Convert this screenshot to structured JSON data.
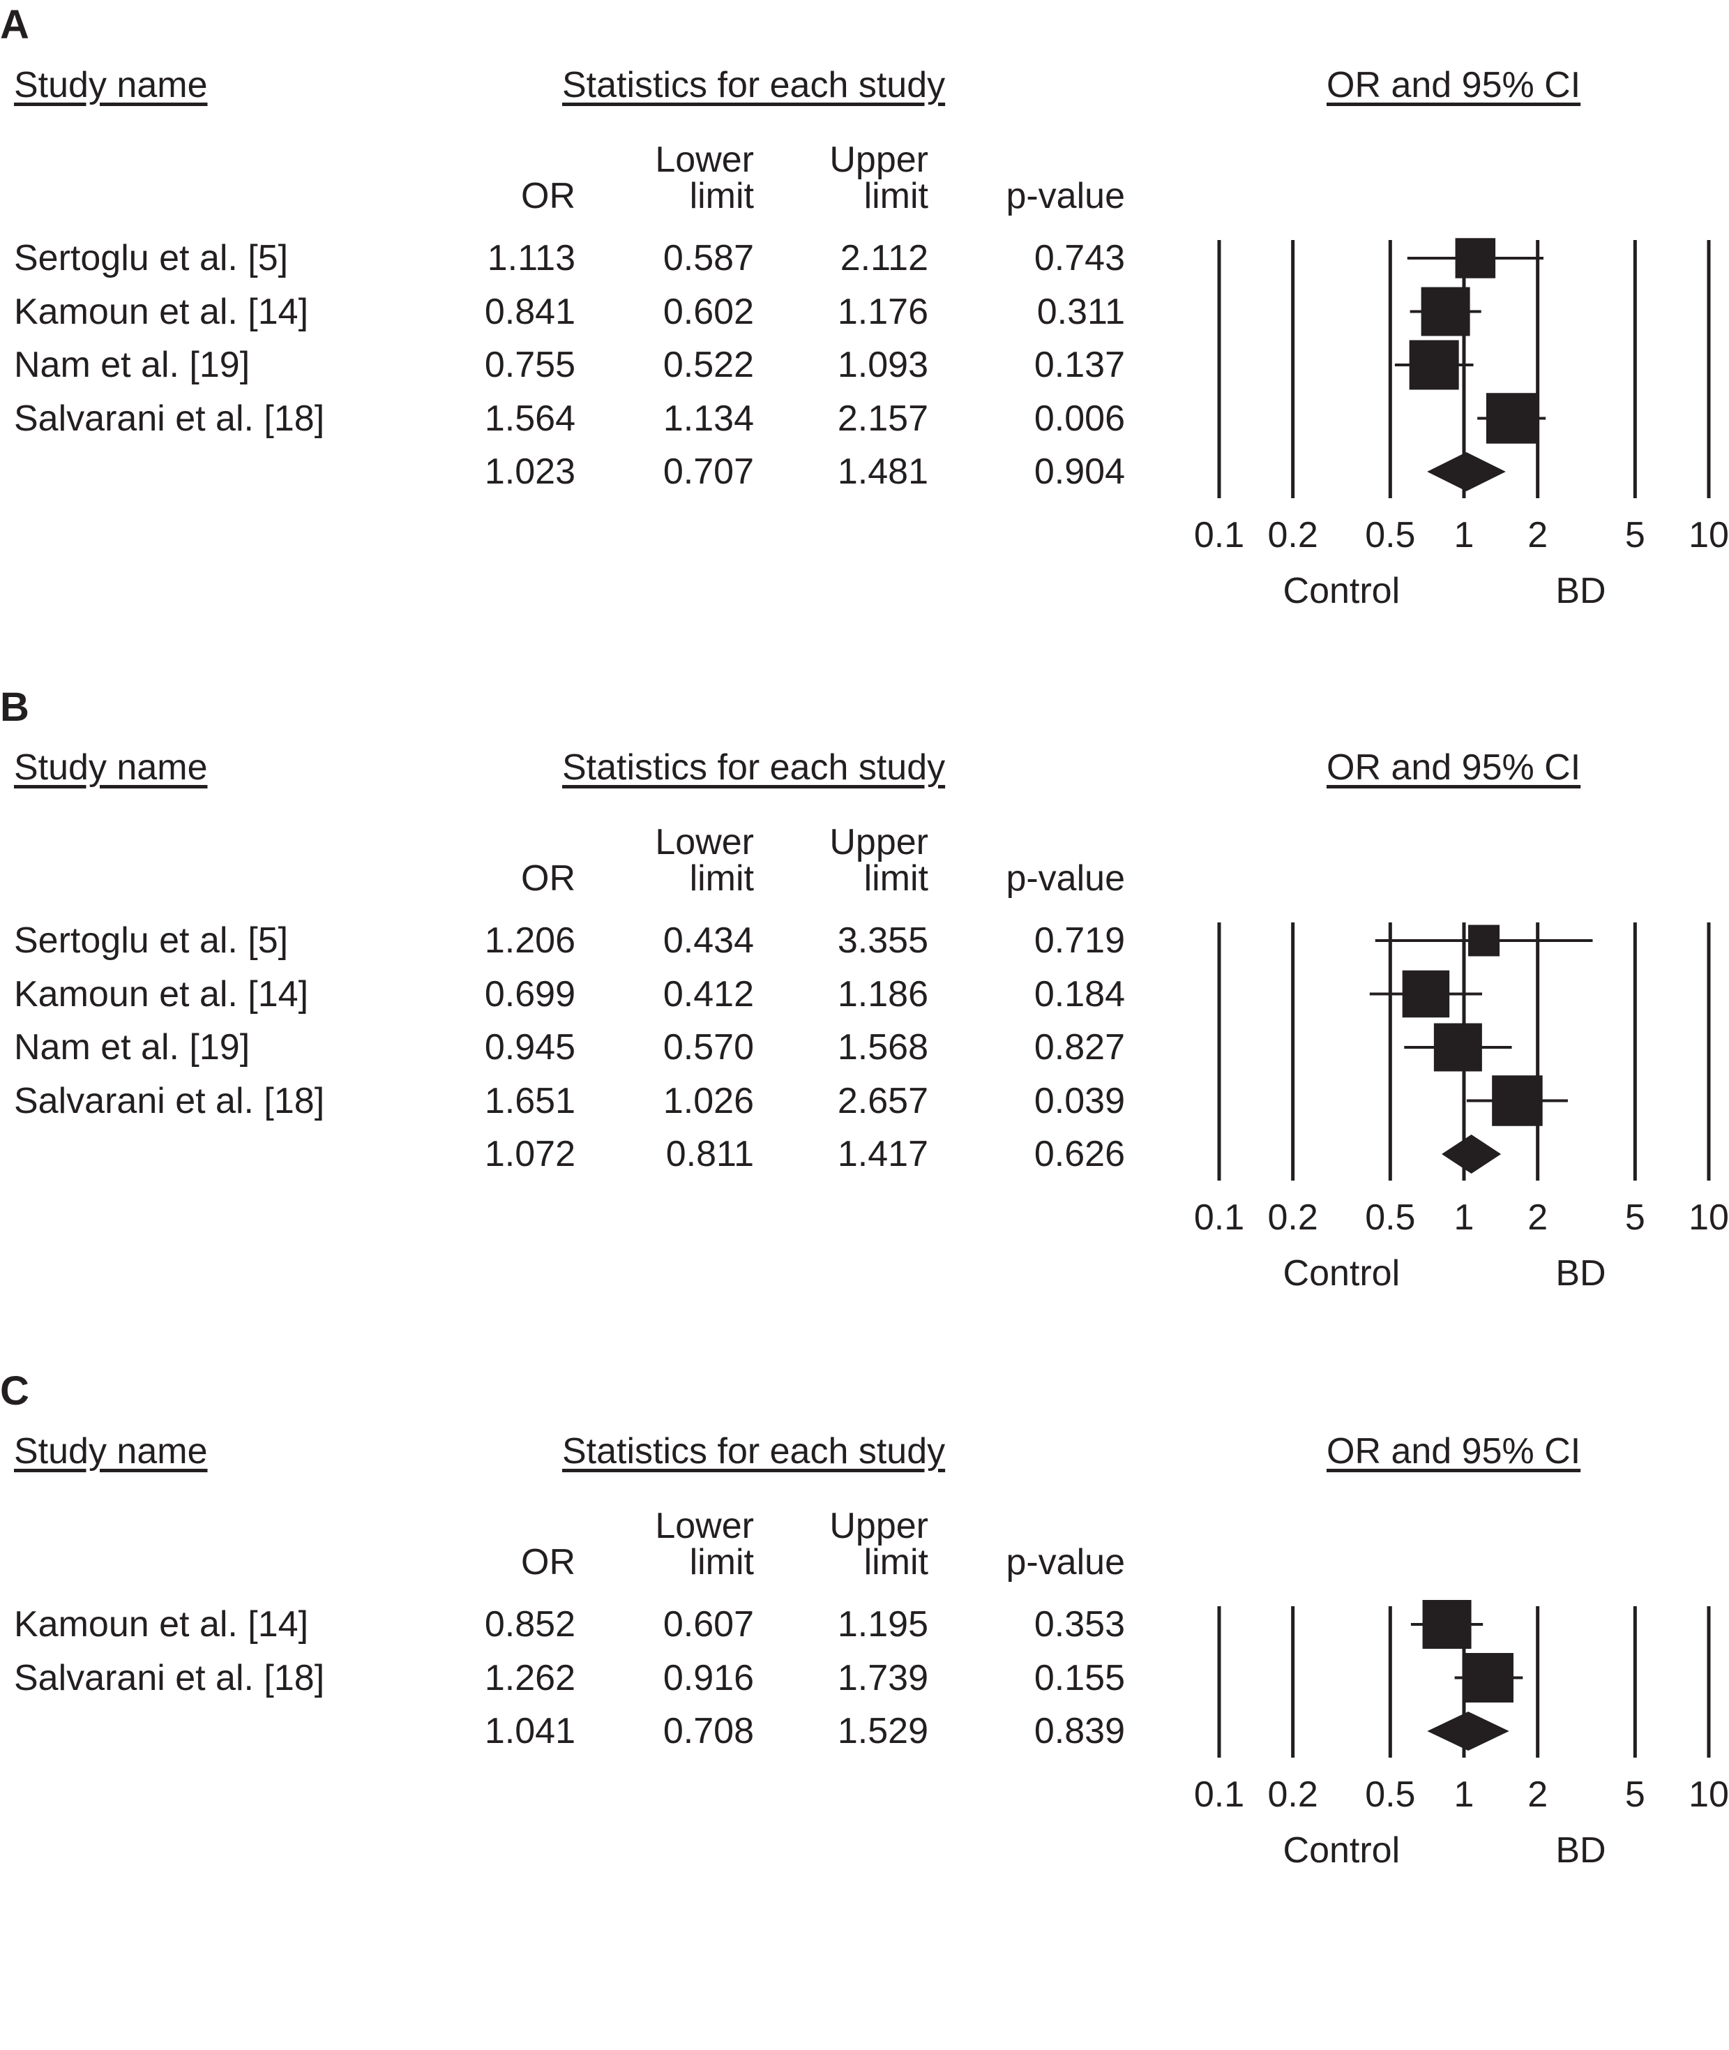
{
  "chart_data": [
    {
      "type": "forest",
      "panel_label": "A",
      "headers": {
        "study": "Study name",
        "stats": "Statistics for each study",
        "plot": "OR and 95% CI"
      },
      "columns": {
        "or": "OR",
        "lower_1": "Lower",
        "lower_2": "limit",
        "upper_1": "Upper",
        "upper_2": "limit",
        "p": "p-value"
      },
      "rows": [
        {
          "study": "Sertoglu et al. [5]",
          "or": "1.113",
          "lower": "0.587",
          "upper": "2.112",
          "p": "0.743",
          "or_v": 1.113,
          "lo_v": 0.587,
          "hi_v": 2.112,
          "weight": 0.55
        },
        {
          "study": "Kamoun et al. [14]",
          "or": "0.841",
          "lower": "0.602",
          "upper": "1.176",
          "p": "0.311",
          "or_v": 0.841,
          "lo_v": 0.602,
          "hi_v": 1.176,
          "weight": 0.8
        },
        {
          "study": "Nam et al. [19]",
          "or": "0.755",
          "lower": "0.522",
          "upper": "1.093",
          "p": "0.137",
          "or_v": 0.755,
          "lo_v": 0.522,
          "hi_v": 1.093,
          "weight": 0.82
        },
        {
          "study": "Salvarani et al. [18]",
          "or": "1.564",
          "lower": "1.134",
          "upper": "2.157",
          "p": "0.006",
          "or_v": 1.564,
          "lo_v": 1.134,
          "hi_v": 2.157,
          "weight": 0.85
        }
      ],
      "summary": {
        "study": "",
        "or": "1.023",
        "lower": "0.707",
        "upper": "1.481",
        "p": "0.904",
        "or_v": 1.023,
        "lo_v": 0.707,
        "hi_v": 1.481
      },
      "x_ticks": [
        {
          "v": 0.1,
          "label": "0.1"
        },
        {
          "v": 0.2,
          "label": "0.2"
        },
        {
          "v": 0.5,
          "label": "0.5"
        },
        {
          "v": 1,
          "label": "1"
        },
        {
          "v": 2,
          "label": "2"
        },
        {
          "v": 5,
          "label": "5"
        },
        {
          "v": 10,
          "label": "10"
        }
      ],
      "xlim": [
        0.1,
        10
      ],
      "x_scale": "log",
      "favours_left": "Control",
      "favours_right": "BD"
    },
    {
      "type": "forest",
      "panel_label": "B",
      "headers": {
        "study": "Study name",
        "stats": "Statistics for each study",
        "plot": "OR and 95% CI"
      },
      "columns": {
        "or": "OR",
        "lower_1": "Lower",
        "lower_2": "limit",
        "upper_1": "Upper",
        "upper_2": "limit",
        "p": "p-value"
      },
      "rows": [
        {
          "study": "Sertoglu et al. [5]",
          "or": "1.206",
          "lower": "0.434",
          "upper": "3.355",
          "p": "0.719",
          "or_v": 1.206,
          "lo_v": 0.434,
          "hi_v": 3.355,
          "weight": 0.3
        },
        {
          "study": "Kamoun et al. [14]",
          "or": "0.699",
          "lower": "0.412",
          "upper": "1.186",
          "p": "0.184",
          "or_v": 0.699,
          "lo_v": 0.412,
          "hi_v": 1.186,
          "weight": 0.75
        },
        {
          "study": "Nam et al. [19]",
          "or": "0.945",
          "lower": "0.570",
          "upper": "1.568",
          "p": "0.827",
          "or_v": 0.945,
          "lo_v": 0.57,
          "hi_v": 1.568,
          "weight": 0.78
        },
        {
          "study": "Salvarani et al. [18]",
          "or": "1.651",
          "lower": "1.026",
          "upper": "2.657",
          "p": "0.039",
          "or_v": 1.651,
          "lo_v": 1.026,
          "hi_v": 2.657,
          "weight": 0.85
        }
      ],
      "summary": {
        "study": "",
        "or": "1.072",
        "lower": "0.811",
        "upper": "1.417",
        "p": "0.626",
        "or_v": 1.072,
        "lo_v": 0.811,
        "hi_v": 1.417
      },
      "x_ticks": [
        {
          "v": 0.1,
          "label": "0.1"
        },
        {
          "v": 0.2,
          "label": "0.2"
        },
        {
          "v": 0.5,
          "label": "0.5"
        },
        {
          "v": 1,
          "label": "1"
        },
        {
          "v": 2,
          "label": "2"
        },
        {
          "v": 5,
          "label": "5"
        },
        {
          "v": 10,
          "label": "10"
        }
      ],
      "xlim": [
        0.1,
        10
      ],
      "x_scale": "log",
      "favours_left": "Control",
      "favours_right": "BD"
    },
    {
      "type": "forest",
      "panel_label": "C",
      "headers": {
        "study": "Study name",
        "stats": "Statistics for each study",
        "plot": "OR and 95% CI"
      },
      "columns": {
        "or": "OR",
        "lower_1": "Lower",
        "lower_2": "limit",
        "upper_1": "Upper",
        "upper_2": "limit",
        "p": "p-value"
      },
      "rows": [
        {
          "study": "Kamoun et al. [14]",
          "or": "0.852",
          "lower": "0.607",
          "upper": "1.195",
          "p": "0.353",
          "or_v": 0.852,
          "lo_v": 0.607,
          "hi_v": 1.195,
          "weight": 0.8
        },
        {
          "study": "Salvarani et al. [18]",
          "or": "1.262",
          "lower": "0.916",
          "upper": "1.739",
          "p": "0.155",
          "or_v": 1.262,
          "lo_v": 0.916,
          "hi_v": 1.739,
          "weight": 0.82
        }
      ],
      "summary": {
        "study": "",
        "or": "1.041",
        "lower": "0.708",
        "upper": "1.529",
        "p": "0.839",
        "or_v": 1.041,
        "lo_v": 0.708,
        "hi_v": 1.529
      },
      "x_ticks": [
        {
          "v": 0.1,
          "label": "0.1"
        },
        {
          "v": 0.2,
          "label": "0.2"
        },
        {
          "v": 0.5,
          "label": "0.5"
        },
        {
          "v": 1,
          "label": "1"
        },
        {
          "v": 2,
          "label": "2"
        },
        {
          "v": 5,
          "label": "5"
        },
        {
          "v": 10,
          "label": "10"
        }
      ],
      "xlim": [
        0.1,
        10
      ],
      "x_scale": "log",
      "favours_left": "Control",
      "favours_right": "BD"
    }
  ],
  "colors": {
    "ink": "#231f20"
  }
}
